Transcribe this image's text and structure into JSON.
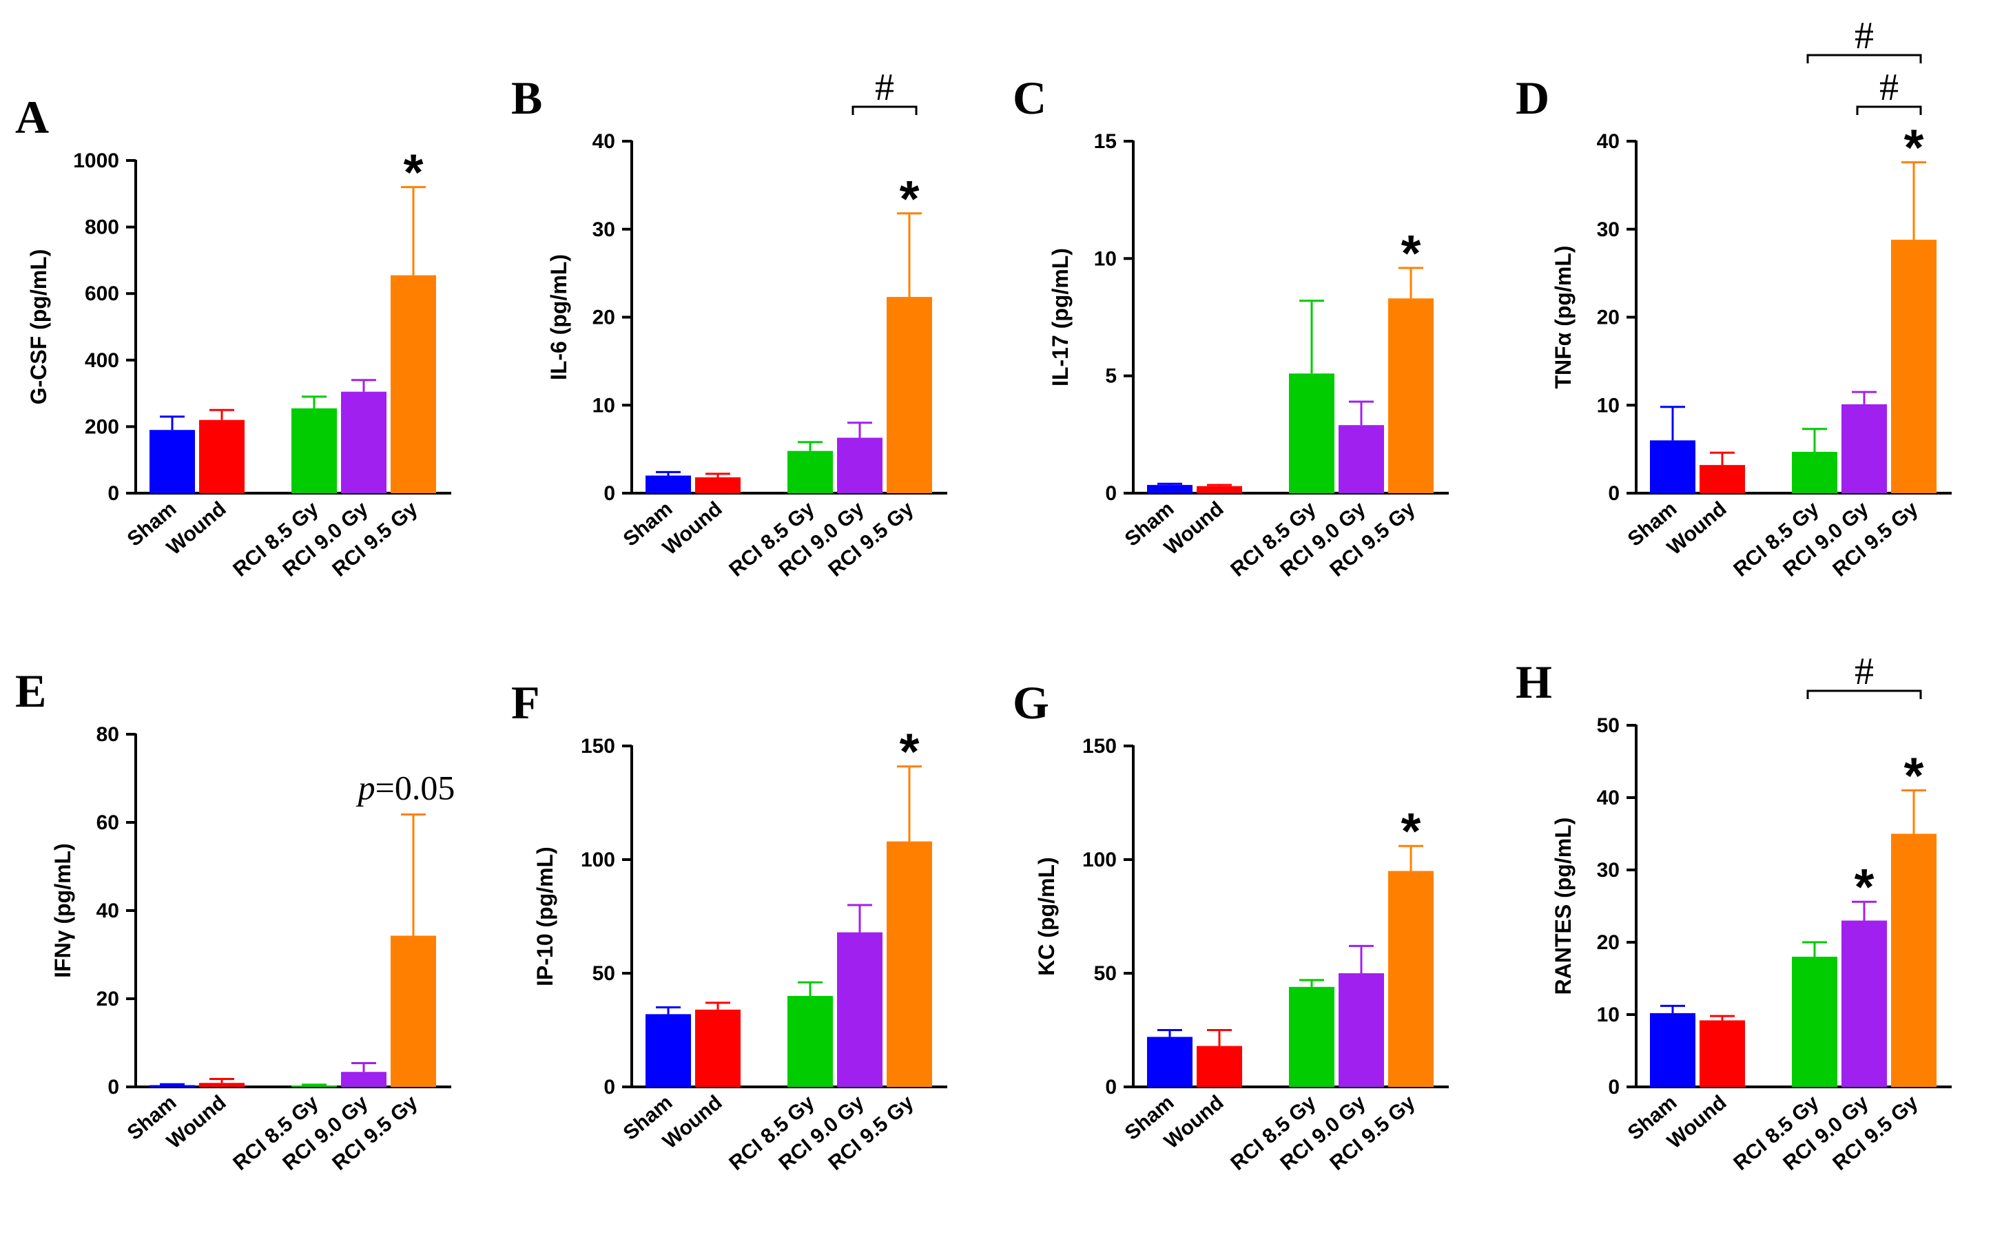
{
  "colors": {
    "Sham": "#0000ff",
    "Wound": "#ff0000",
    "RCI 8.5 Gy": "#00cc00",
    "RCI 9.0 Gy": "#a020f0",
    "RCI 9.5 Gy": "#ff8000"
  },
  "chart_data": [
    {
      "panel": "A",
      "type": "bar",
      "ylabel": "G-CSF (pg/mL)",
      "categories": [
        "Sham",
        "Wound",
        "RCI 8.5 Gy",
        "RCI 9.0 Gy",
        "RCI 9.5 Gy"
      ],
      "values": [
        190,
        220,
        255,
        305,
        655
      ],
      "errors": [
        40,
        30,
        35,
        35,
        265
      ],
      "ylim": [
        0,
        1000
      ],
      "yticks": [
        "0",
        "200",
        "400",
        "600",
        "800",
        "1000"
      ],
      "stars": [
        {
          "index": 4,
          "text": "*"
        }
      ],
      "brackets": [],
      "annotation": null
    },
    {
      "panel": "B",
      "type": "bar",
      "ylabel": "IL-6 (pg/mL)",
      "categories": [
        "Sham",
        "Wound",
        "RCI 8.5 Gy",
        "RCI 9.0 Gy",
        "RCI 9.5 Gy"
      ],
      "values": [
        2.0,
        1.8,
        4.8,
        6.3,
        22.3
      ],
      "errors": [
        0.4,
        0.4,
        1.0,
        1.7,
        9.5
      ],
      "ylim": [
        0,
        40
      ],
      "yticks": [
        "0",
        "10",
        "20",
        "30",
        "40"
      ],
      "stars": [
        {
          "index": 4,
          "text": "*"
        }
      ],
      "brackets": [
        {
          "from": 3,
          "to": 4,
          "text": "#",
          "level": 0
        }
      ],
      "annotation": null
    },
    {
      "panel": "C",
      "type": "bar",
      "ylabel": "IL-17 (pg/mL)",
      "categories": [
        "Sham",
        "Wound",
        "RCI 8.5 Gy",
        "RCI 9.0 Gy",
        "RCI 9.5 Gy"
      ],
      "values": [
        0.35,
        0.3,
        5.1,
        2.9,
        8.3
      ],
      "errors": [
        0.05,
        0.05,
        3.1,
        1.0,
        1.3
      ],
      "ylim": [
        0,
        15
      ],
      "yticks": [
        "0",
        "5",
        "10",
        "15"
      ],
      "stars": [
        {
          "index": 4,
          "text": "*"
        }
      ],
      "brackets": [],
      "annotation": null
    },
    {
      "panel": "D",
      "type": "bar",
      "ylabel": "TNFα (pg/mL)",
      "categories": [
        "Sham",
        "Wound",
        "RCI 8.5 Gy",
        "RCI 9.0 Gy",
        "RCI 9.5 Gy"
      ],
      "values": [
        6.0,
        3.2,
        4.7,
        10.1,
        28.8
      ],
      "errors": [
        3.8,
        1.4,
        2.6,
        1.4,
        8.8
      ],
      "ylim": [
        0,
        40
      ],
      "yticks": [
        "0",
        "10",
        "20",
        "30",
        "40"
      ],
      "stars": [
        {
          "index": 4,
          "text": "*"
        }
      ],
      "brackets": [
        {
          "from": 3,
          "to": 4,
          "text": "#",
          "level": 0
        },
        {
          "from": 2,
          "to": 4,
          "text": "#",
          "level": 1
        }
      ],
      "annotation": null
    },
    {
      "panel": "E",
      "type": "bar",
      "ylabel": "IFNγ (pg/mL)",
      "categories": [
        "Sham",
        "Wound",
        "RCI 8.5 Gy",
        "RCI 9.0 Gy",
        "RCI 9.5 Gy"
      ],
      "values": [
        0.4,
        0.9,
        0.3,
        3.4,
        34.3
      ],
      "errors": [
        0.2,
        0.9,
        0.2,
        2.0,
        27.5
      ],
      "ylim": [
        0,
        80
      ],
      "yticks": [
        "0",
        "20",
        "40",
        "60",
        "80"
      ],
      "stars": [],
      "brackets": [],
      "annotation": {
        "index": 4,
        "italic": "p",
        "text": "=0.05"
      }
    },
    {
      "panel": "F",
      "type": "bar",
      "ylabel": "IP-10 (pg/mL)",
      "categories": [
        "Sham",
        "Wound",
        "RCI 8.5 Gy",
        "RCI 9.0 Gy",
        "RCI 9.5 Gy"
      ],
      "values": [
        32,
        34,
        40,
        68,
        108
      ],
      "errors": [
        3,
        3,
        6,
        12,
        33
      ],
      "ylim": [
        0,
        150
      ],
      "yticks": [
        "0",
        "50",
        "100",
        "150"
      ],
      "stars": [
        {
          "index": 4,
          "text": "*"
        }
      ],
      "brackets": [],
      "annotation": null
    },
    {
      "panel": "G",
      "type": "bar",
      "ylabel": "KC (pg/mL)",
      "categories": [
        "Sham",
        "Wound",
        "RCI 8.5 Gy",
        "RCI 9.0 Gy",
        "RCI 9.5 Gy"
      ],
      "values": [
        22,
        18,
        44,
        50,
        95
      ],
      "errors": [
        3,
        7,
        3,
        12,
        11
      ],
      "ylim": [
        0,
        150
      ],
      "yticks": [
        "0",
        "50",
        "100",
        "150"
      ],
      "stars": [
        {
          "index": 4,
          "text": "*"
        }
      ],
      "brackets": [],
      "annotation": null
    },
    {
      "panel": "H",
      "type": "bar",
      "ylabel": "RANTES (pg/mL)",
      "categories": [
        "Sham",
        "Wound",
        "RCI 8.5 Gy",
        "RCI 9.0 Gy",
        "RCI 9.5 Gy"
      ],
      "values": [
        10.2,
        9.2,
        18.0,
        23.0,
        35.0
      ],
      "errors": [
        1.0,
        0.6,
        2.0,
        2.6,
        6.0
      ],
      "ylim": [
        0,
        50
      ],
      "yticks": [
        "0",
        "10",
        "20",
        "30",
        "40",
        "50"
      ],
      "stars": [
        {
          "index": 3,
          "text": "*"
        },
        {
          "index": 4,
          "text": "*"
        }
      ],
      "brackets": [
        {
          "from": 2,
          "to": 4,
          "text": "#",
          "level": 0
        }
      ],
      "annotation": null
    }
  ]
}
